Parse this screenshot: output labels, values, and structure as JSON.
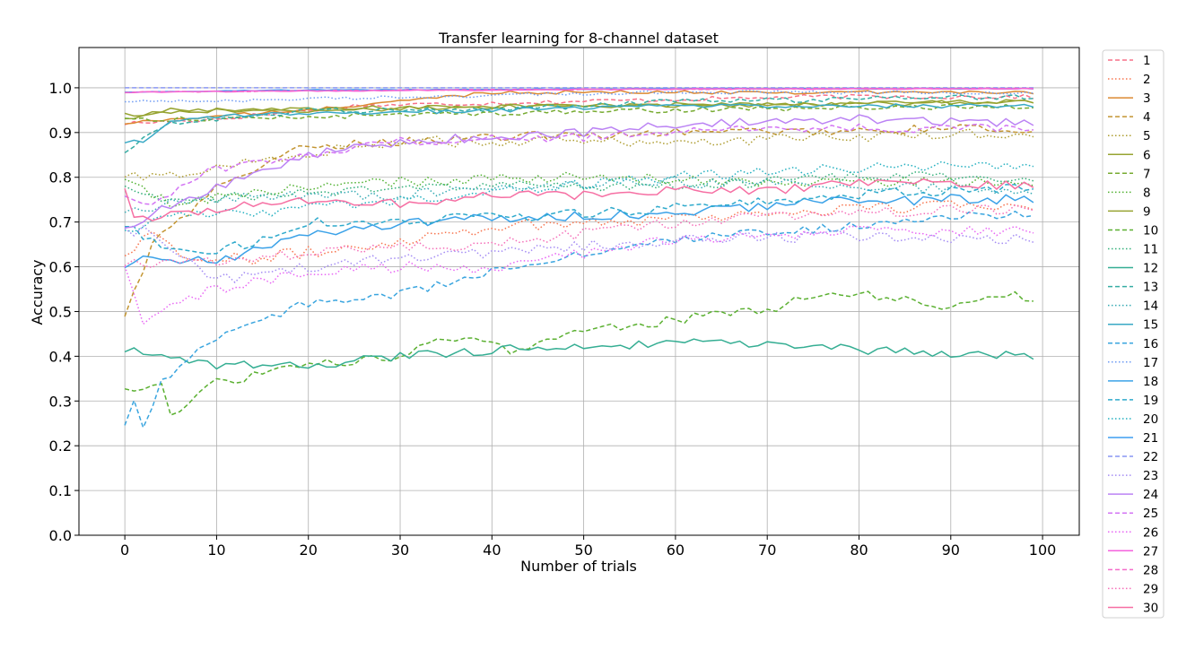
{
  "chart_data": {
    "type": "line",
    "title": "Transfer learning for 8-channel dataset",
    "xlabel": "Number of trials",
    "ylabel": "Accuracy",
    "xlim": [
      -5,
      104
    ],
    "ylim": [
      0.0,
      1.09
    ],
    "xticks": [
      0,
      10,
      20,
      30,
      40,
      50,
      60,
      70,
      80,
      90,
      100
    ],
    "yticks": [
      0.0,
      0.1,
      0.2,
      0.3,
      0.4,
      0.5,
      0.6,
      0.7,
      0.8,
      0.9,
      1.0
    ],
    "xtick_labels": [
      "0",
      "10",
      "20",
      "30",
      "40",
      "50",
      "60",
      "70",
      "80",
      "90",
      "100"
    ],
    "ytick_labels": [
      "0.0",
      "0.1",
      "0.2",
      "0.3",
      "0.4",
      "0.5",
      "0.6",
      "0.7",
      "0.8",
      "0.9",
      "1.0"
    ],
    "grid": true,
    "legend_position": "outside-right",
    "x_start": 0,
    "x_end": 99,
    "series": [
      {
        "name": "1",
        "color": "#f77189",
        "dash": "dashed",
        "anchors": [
          [
            0,
            0.92
          ],
          [
            10,
            0.93
          ],
          [
            25,
            0.96
          ],
          [
            50,
            0.97
          ],
          [
            75,
            0.98
          ],
          [
            99,
            0.98
          ]
        ],
        "noise": 0.005
      },
      {
        "name": "2",
        "color": "#f7754f",
        "dash": "dotted",
        "anchors": [
          [
            0,
            0.63
          ],
          [
            3,
            0.68
          ],
          [
            8,
            0.61
          ],
          [
            20,
            0.63
          ],
          [
            40,
            0.69
          ],
          [
            60,
            0.71
          ],
          [
            80,
            0.73
          ],
          [
            99,
            0.74
          ]
        ],
        "noise": 0.015
      },
      {
        "name": "3",
        "color": "#dc8932",
        "dash": "solid",
        "anchors": [
          [
            0,
            0.92
          ],
          [
            5,
            0.93
          ],
          [
            20,
            0.95
          ],
          [
            40,
            0.99
          ],
          [
            60,
            0.99
          ],
          [
            99,
            0.99
          ]
        ],
        "noise": 0.004
      },
      {
        "name": "4",
        "color": "#c39532",
        "dash": "dashed",
        "anchors": [
          [
            0,
            0.49
          ],
          [
            3,
            0.65
          ],
          [
            7,
            0.72
          ],
          [
            10,
            0.78
          ],
          [
            20,
            0.87
          ],
          [
            40,
            0.89
          ],
          [
            60,
            0.9
          ],
          [
            99,
            0.91
          ]
        ],
        "noise": 0.01
      },
      {
        "name": "5",
        "color": "#ae9d31",
        "dash": "dotted",
        "anchors": [
          [
            0,
            0.8
          ],
          [
            4,
            0.8
          ],
          [
            15,
            0.84
          ],
          [
            30,
            0.88
          ],
          [
            60,
            0.88
          ],
          [
            99,
            0.9
          ]
        ],
        "noise": 0.012
      },
      {
        "name": "6",
        "color": "#97a431",
        "dash": "solid",
        "anchors": [
          [
            0,
            0.93
          ],
          [
            5,
            0.95
          ],
          [
            15,
            0.95
          ],
          [
            40,
            0.96
          ],
          [
            70,
            0.96
          ],
          [
            99,
            0.97
          ]
        ],
        "noise": 0.005
      },
      {
        "name": "7",
        "color": "#77ab31",
        "dash": "dashed",
        "anchors": [
          [
            0,
            0.93
          ],
          [
            10,
            0.93
          ],
          [
            30,
            0.94
          ],
          [
            60,
            0.95
          ],
          [
            99,
            0.96
          ]
        ],
        "noise": 0.006
      },
      {
        "name": "8",
        "color": "#50b131",
        "dash": "dotted",
        "anchors": [
          [
            0,
            0.79
          ],
          [
            5,
            0.74
          ],
          [
            15,
            0.77
          ],
          [
            30,
            0.79
          ],
          [
            50,
            0.8
          ],
          [
            70,
            0.79
          ],
          [
            99,
            0.79
          ]
        ],
        "noise": 0.012
      },
      {
        "name": "9",
        "color": "#96a331",
        "dash": "solid",
        "anchors": [
          [
            0,
            0.94
          ],
          [
            10,
            0.95
          ],
          [
            20,
            0.95
          ],
          [
            50,
            0.96
          ],
          [
            99,
            0.97
          ]
        ],
        "noise": 0.005
      },
      {
        "name": "10",
        "color": "#5bb031",
        "dash": "dashed",
        "anchors": [
          [
            0,
            0.32
          ],
          [
            4,
            0.34
          ],
          [
            5,
            0.27
          ],
          [
            10,
            0.34
          ],
          [
            20,
            0.38
          ],
          [
            30,
            0.4
          ],
          [
            37,
            0.45
          ],
          [
            42,
            0.41
          ],
          [
            50,
            0.46
          ],
          [
            60,
            0.48
          ],
          [
            65,
            0.5
          ],
          [
            70,
            0.5
          ],
          [
            75,
            0.54
          ],
          [
            80,
            0.54
          ],
          [
            90,
            0.51
          ],
          [
            95,
            0.54
          ],
          [
            99,
            0.53
          ]
        ],
        "noise": 0.01
      },
      {
        "name": "11",
        "color": "#33b07a",
        "dash": "dotted",
        "anchors": [
          [
            0,
            0.77
          ],
          [
            5,
            0.75
          ],
          [
            15,
            0.76
          ],
          [
            25,
            0.77
          ],
          [
            40,
            0.78
          ],
          [
            60,
            0.78
          ],
          [
            80,
            0.8
          ],
          [
            99,
            0.8
          ]
        ],
        "noise": 0.012
      },
      {
        "name": "12",
        "color": "#35ae93",
        "dash": "solid",
        "anchors": [
          [
            0,
            0.42
          ],
          [
            2,
            0.4
          ],
          [
            10,
            0.38
          ],
          [
            20,
            0.38
          ],
          [
            30,
            0.4
          ],
          [
            45,
            0.42
          ],
          [
            65,
            0.43
          ],
          [
            75,
            0.42
          ],
          [
            85,
            0.41
          ],
          [
            99,
            0.4
          ]
        ],
        "noise": 0.01
      },
      {
        "name": "13",
        "color": "#36ada4",
        "dash": "dashed",
        "anchors": [
          [
            0,
            0.86
          ],
          [
            5,
            0.92
          ],
          [
            20,
            0.95
          ],
          [
            40,
            0.95
          ],
          [
            60,
            0.97
          ],
          [
            99,
            0.98
          ]
        ],
        "noise": 0.006
      },
      {
        "name": "14",
        "color": "#37abb4",
        "dash": "dotted",
        "anchors": [
          [
            0,
            0.73
          ],
          [
            5,
            0.74
          ],
          [
            15,
            0.76
          ],
          [
            30,
            0.76
          ],
          [
            45,
            0.78
          ],
          [
            60,
            0.79
          ],
          [
            80,
            0.78
          ],
          [
            99,
            0.77
          ]
        ],
        "noise": 0.012
      },
      {
        "name": "15",
        "color": "#38a9c5",
        "dash": "solid",
        "anchors": [
          [
            0,
            0.88
          ],
          [
            2,
            0.88
          ],
          [
            5,
            0.93
          ],
          [
            15,
            0.94
          ],
          [
            40,
            0.95
          ],
          [
            60,
            0.96
          ],
          [
            99,
            0.96
          ]
        ],
        "noise": 0.005
      },
      {
        "name": "16",
        "color": "#3aa5df",
        "dash": "dashed",
        "anchors": [
          [
            0,
            0.25
          ],
          [
            1,
            0.31
          ],
          [
            2,
            0.24
          ],
          [
            4,
            0.34
          ],
          [
            6,
            0.38
          ],
          [
            10,
            0.44
          ],
          [
            20,
            0.52
          ],
          [
            25,
            0.53
          ],
          [
            30,
            0.54
          ],
          [
            40,
            0.59
          ],
          [
            50,
            0.63
          ],
          [
            60,
            0.66
          ],
          [
            70,
            0.68
          ],
          [
            80,
            0.69
          ],
          [
            90,
            0.71
          ],
          [
            99,
            0.72
          ]
        ],
        "noise": 0.01
      },
      {
        "name": "17",
        "color": "#6e9bf4",
        "dash": "dotted",
        "anchors": [
          [
            0,
            0.97
          ],
          [
            10,
            0.97
          ],
          [
            30,
            0.98
          ],
          [
            60,
            0.99
          ],
          [
            99,
            0.99
          ]
        ],
        "noise": 0.004
      },
      {
        "name": "18",
        "color": "#3ba2e8",
        "dash": "solid",
        "anchors": [
          [
            0,
            0.6
          ],
          [
            3,
            0.62
          ],
          [
            10,
            0.61
          ],
          [
            20,
            0.67
          ],
          [
            30,
            0.7
          ],
          [
            40,
            0.71
          ],
          [
            60,
            0.72
          ],
          [
            80,
            0.75
          ],
          [
            99,
            0.75
          ]
        ],
        "noise": 0.012
      },
      {
        "name": "19",
        "color": "#2faacc",
        "dash": "dashed",
        "anchors": [
          [
            0,
            0.69
          ],
          [
            5,
            0.64
          ],
          [
            10,
            0.63
          ],
          [
            20,
            0.7
          ],
          [
            40,
            0.71
          ],
          [
            60,
            0.73
          ],
          [
            80,
            0.76
          ],
          [
            99,
            0.78
          ]
        ],
        "noise": 0.012
      },
      {
        "name": "20",
        "color": "#24b0c0",
        "dash": "dotted",
        "anchors": [
          [
            0,
            0.68
          ],
          [
            5,
            0.71
          ],
          [
            20,
            0.73
          ],
          [
            40,
            0.77
          ],
          [
            60,
            0.8
          ],
          [
            80,
            0.82
          ],
          [
            99,
            0.83
          ]
        ],
        "noise": 0.012
      },
      {
        "name": "21",
        "color": "#3d9df0",
        "dash": "solid",
        "anchors": [
          [
            0,
            0.99
          ],
          [
            20,
            0.995
          ],
          [
            60,
            0.998
          ],
          [
            99,
            0.998
          ]
        ],
        "noise": 0.001
      },
      {
        "name": "22",
        "color": "#8996f4",
        "dash": "dashed",
        "anchors": [
          [
            0,
            1.0
          ],
          [
            99,
            1.0
          ]
        ],
        "noise": 0.0
      },
      {
        "name": "23",
        "color": "#a48cf4",
        "dash": "dotted",
        "anchors": [
          [
            0,
            0.68
          ],
          [
            3,
            0.68
          ],
          [
            10,
            0.57
          ],
          [
            20,
            0.6
          ],
          [
            30,
            0.62
          ],
          [
            45,
            0.64
          ],
          [
            60,
            0.66
          ],
          [
            80,
            0.67
          ],
          [
            99,
            0.66
          ]
        ],
        "noise": 0.012
      },
      {
        "name": "24",
        "color": "#bb83f4",
        "dash": "solid",
        "anchors": [
          [
            0,
            0.68
          ],
          [
            3,
            0.72
          ],
          [
            10,
            0.78
          ],
          [
            20,
            0.85
          ],
          [
            30,
            0.88
          ],
          [
            40,
            0.89
          ],
          [
            50,
            0.9
          ],
          [
            60,
            0.92
          ],
          [
            80,
            0.93
          ],
          [
            99,
            0.92
          ]
        ],
        "noise": 0.01
      },
      {
        "name": "25",
        "color": "#d374f4",
        "dash": "dashed",
        "anchors": [
          [
            0,
            0.75
          ],
          [
            3,
            0.74
          ],
          [
            10,
            0.82
          ],
          [
            20,
            0.85
          ],
          [
            30,
            0.88
          ],
          [
            50,
            0.89
          ],
          [
            70,
            0.91
          ],
          [
            99,
            0.91
          ]
        ],
        "noise": 0.01
      },
      {
        "name": "26",
        "color": "#e866f4",
        "dash": "dotted",
        "anchors": [
          [
            0,
            0.59
          ],
          [
            2,
            0.47
          ],
          [
            5,
            0.52
          ],
          [
            10,
            0.55
          ],
          [
            20,
            0.59
          ],
          [
            30,
            0.6
          ],
          [
            40,
            0.59
          ],
          [
            50,
            0.63
          ],
          [
            60,
            0.66
          ],
          [
            80,
            0.68
          ],
          [
            99,
            0.68
          ]
        ],
        "noise": 0.012
      },
      {
        "name": "27",
        "color": "#f461dd",
        "dash": "solid",
        "anchors": [
          [
            0,
            0.99
          ],
          [
            20,
            0.993
          ],
          [
            60,
            0.997
          ],
          [
            99,
            0.998
          ]
        ],
        "noise": 0.001
      },
      {
        "name": "28",
        "color": "#f56bca",
        "dash": "dashed",
        "anchors": [
          [
            0,
            0.99
          ],
          [
            30,
            0.995
          ],
          [
            99,
            0.999
          ]
        ],
        "noise": 0.001
      },
      {
        "name": "29",
        "color": "#f56fb9",
        "dash": "dotted",
        "anchors": [
          [
            0,
            0.61
          ],
          [
            5,
            0.61
          ],
          [
            15,
            0.62
          ],
          [
            25,
            0.64
          ],
          [
            40,
            0.65
          ],
          [
            60,
            0.7
          ],
          [
            80,
            0.72
          ],
          [
            99,
            0.73
          ]
        ],
        "noise": 0.012
      },
      {
        "name": "30",
        "color": "#f66fa3",
        "dash": "solid",
        "anchors": [
          [
            0,
            0.78
          ],
          [
            1,
            0.72
          ],
          [
            3,
            0.71
          ],
          [
            10,
            0.73
          ],
          [
            20,
            0.75
          ],
          [
            30,
            0.74
          ],
          [
            40,
            0.76
          ],
          [
            50,
            0.76
          ],
          [
            60,
            0.77
          ],
          [
            70,
            0.77
          ],
          [
            80,
            0.79
          ],
          [
            99,
            0.78
          ]
        ],
        "noise": 0.01
      }
    ]
  }
}
